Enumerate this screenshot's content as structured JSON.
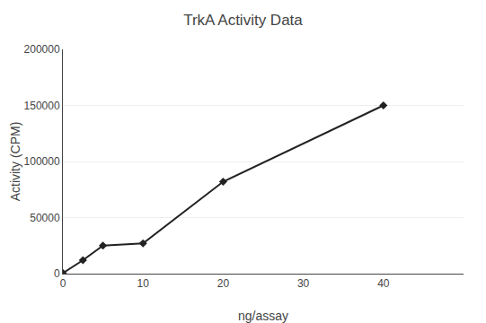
{
  "chart_data": {
    "type": "line",
    "title": "TrkA Activity Data",
    "xlabel": "ng/assay",
    "ylabel": "Activity (CPM)",
    "x": [
      0,
      2.5,
      5,
      10,
      20,
      40
    ],
    "values": [
      500,
      12000,
      25000,
      27000,
      82000,
      150000
    ],
    "color": "#222222",
    "marker": "diamond",
    "xlim": [
      0,
      50
    ],
    "xticks": [
      0,
      10,
      20,
      30,
      40
    ],
    "ylim": [
      0,
      200000
    ],
    "yticks": [
      0,
      50000,
      100000,
      150000,
      200000
    ],
    "grid": "y"
  }
}
